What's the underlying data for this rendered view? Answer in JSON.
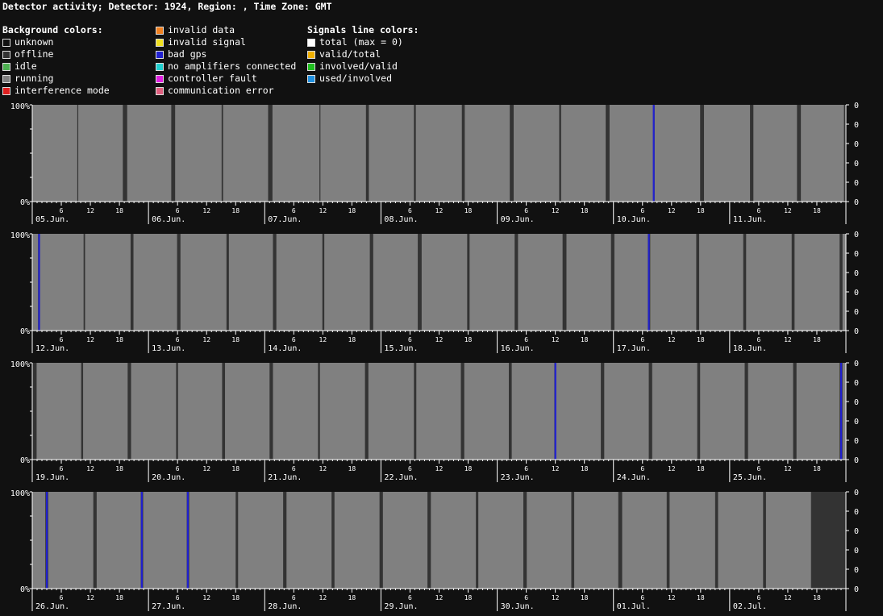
{
  "title": "Detector activity; Detector: 1924, Region: , Time Zone: GMT",
  "legend": {
    "background_title": "Background colors:",
    "background_col1": [
      {
        "label": "unknown",
        "color": "#111111"
      },
      {
        "label": "offline",
        "color": "#333333"
      },
      {
        "label": "idle",
        "color": "#4caf50"
      },
      {
        "label": "running",
        "color": "#808080"
      },
      {
        "label": "interference mode",
        "color": "#e02020"
      }
    ],
    "background_col2": [
      {
        "label": "invalid data",
        "color": "#f08020"
      },
      {
        "label": "invalid signal",
        "color": "#f0e020"
      },
      {
        "label": "bad gps",
        "color": "#2020d0"
      },
      {
        "label": "no amplifiers connected",
        "color": "#20d0d0"
      },
      {
        "label": "controller fault",
        "color": "#e020e0"
      },
      {
        "label": "communication error",
        "color": "#e06080"
      }
    ],
    "signals_title": "Signals line colors:",
    "signals": [
      {
        "label": "total (max = 0)",
        "color": "#ffffff"
      },
      {
        "label": "valid/total",
        "color": "#f0b000"
      },
      {
        "label": "involved/valid",
        "color": "#20c020"
      },
      {
        "label": "used/involved",
        "color": "#2090e0"
      }
    ]
  },
  "chart_data": [
    {
      "type": "area",
      "y_left_labels": [
        "100%",
        "0%"
      ],
      "y_right_labels": [
        "0",
        "0",
        "0",
        "0",
        "0",
        "0"
      ],
      "hour_ticks": [
        "6",
        "12",
        "18"
      ],
      "days": [
        "05.Jun.",
        "06.Jun.",
        "07.Jun.",
        "08.Jun.",
        "09.Jun.",
        "10.Jun.",
        "11.Jun."
      ],
      "running_segments": [
        [
          0.05,
          9.3
        ],
        [
          9.5,
          18.7
        ],
        [
          19.6,
          28.7
        ],
        [
          29.5,
          39.1
        ],
        [
          39.4,
          48.7
        ],
        [
          49.6,
          59.3
        ],
        [
          59.5,
          68.9
        ],
        [
          69.5,
          78.8
        ],
        [
          79.2,
          88.7
        ],
        [
          89.3,
          98.6
        ],
        [
          99.4,
          108.8
        ],
        [
          109.2,
          118.4
        ],
        [
          119.2,
          128.2
        ],
        [
          128.5,
          137.9
        ],
        [
          138.7,
          148.2
        ],
        [
          148.9,
          157.9
        ],
        [
          158.7,
          167.6
        ]
      ],
      "bad_gps_marks": [
        128.3
      ]
    },
    {
      "type": "area",
      "y_left_labels": [
        "100%",
        "0%"
      ],
      "y_right_labels": [
        "0",
        "0",
        "0",
        "0",
        "0",
        "0"
      ],
      "hour_ticks": [
        "6",
        "12",
        "18"
      ],
      "days": [
        "12.Jun.",
        "13.Jun.",
        "14.Jun.",
        "15.Jun.",
        "16.Jun.",
        "17.Jun.",
        "18.Jun."
      ],
      "running_segments": [
        [
          0,
          1.2
        ],
        [
          1.6,
          10.6
        ],
        [
          10.9,
          20.3
        ],
        [
          20.9,
          29.9
        ],
        [
          30.6,
          40.1
        ],
        [
          40.6,
          49.7
        ],
        [
          50.4,
          59.9
        ],
        [
          60.3,
          69.7
        ],
        [
          70.4,
          79.6
        ],
        [
          80.4,
          89.8
        ],
        [
          90.3,
          99.6
        ],
        [
          100.3,
          109.5
        ],
        [
          110.3,
          119.5
        ],
        [
          120.2,
          127.1
        ],
        [
          127.6,
          137.1
        ],
        [
          137.7,
          146.8
        ],
        [
          147.4,
          156.8
        ],
        [
          157.4,
          166.7
        ],
        [
          167.3,
          168
        ]
      ],
      "bad_gps_marks": [
        1.4,
        127.3
      ]
    },
    {
      "type": "area",
      "y_left_labels": [
        "100%",
        "0%"
      ],
      "y_right_labels": [
        "0",
        "0",
        "0",
        "0",
        "0",
        "0"
      ],
      "hour_ticks": [
        "6",
        "12",
        "18"
      ],
      "days": [
        "19.Jun.",
        "20.Jun.",
        "21.Jun.",
        "22.Jun.",
        "23.Jun.",
        "24.Jun.",
        "25.Jun."
      ],
      "running_segments": [
        [
          0.9,
          10.1
        ],
        [
          10.5,
          19.7
        ],
        [
          20.4,
          29.7
        ],
        [
          30.1,
          39.2
        ],
        [
          39.8,
          49
        ],
        [
          49.7,
          59
        ],
        [
          59.4,
          68.7
        ],
        [
          69.4,
          78.8
        ],
        [
          79.3,
          88.5
        ],
        [
          89.2,
          98.4
        ],
        [
          99,
          107.8
        ],
        [
          108.1,
          117.4
        ],
        [
          118.1,
          127.3
        ],
        [
          128,
          137.3
        ],
        [
          137.9,
          147.1
        ],
        [
          147.8,
          157.1
        ],
        [
          157.8,
          166.7
        ],
        [
          167.3,
          168
        ]
      ],
      "bad_gps_marks": [
        108,
        167.0
      ]
    },
    {
      "type": "area",
      "y_left_labels": [
        "100%",
        "0%"
      ],
      "y_right_labels": [
        "0",
        "0",
        "0",
        "0",
        "0",
        "0"
      ],
      "hour_ticks": [
        "6",
        "12",
        "18"
      ],
      "days": [
        "26.Jun.",
        "27.Jun.",
        "28.Jun.",
        "29.Jun.",
        "30.Jun.",
        "01.Jul.",
        "02.Jul."
      ],
      "running_segments": [
        [
          0,
          2.7
        ],
        [
          3.3,
          12.6
        ],
        [
          13.3,
          22.4
        ],
        [
          22.9,
          31.9
        ],
        [
          32.4,
          42
        ],
        [
          42.5,
          51.8
        ],
        [
          52.5,
          61.8
        ],
        [
          62.4,
          71.7
        ],
        [
          72.4,
          81.6
        ],
        [
          82.3,
          91.6
        ],
        [
          92.1,
          101.4
        ],
        [
          102.1,
          111.3
        ],
        [
          111.9,
          121
        ],
        [
          121.8,
          131
        ],
        [
          131.6,
          141
        ],
        [
          141.6,
          150.9
        ],
        [
          151.5,
          160.8
        ]
      ],
      "bad_gps_marks": [
        3.0,
        22.6,
        32.1
      ]
    }
  ]
}
